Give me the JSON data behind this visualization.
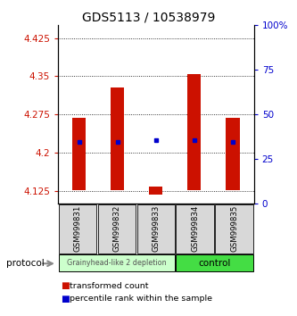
{
  "title": "GDS5113 / 10538979",
  "samples": [
    "GSM999831",
    "GSM999832",
    "GSM999833",
    "GSM999834",
    "GSM999835"
  ],
  "bar_bottoms": [
    4.127,
    4.127,
    4.118,
    4.127,
    4.127
  ],
  "bar_tops": [
    4.268,
    4.328,
    4.133,
    4.355,
    4.268
  ],
  "percentile_values": [
    4.222,
    4.222,
    4.225,
    4.225,
    4.222
  ],
  "ylim_left": [
    4.1,
    4.45
  ],
  "ylim_right": [
    0,
    100
  ],
  "yticks_left": [
    4.125,
    4.2,
    4.275,
    4.35,
    4.425
  ],
  "yticks_right": [
    0,
    25,
    50,
    75,
    100
  ],
  "ytick_labels_left": [
    "4.125",
    "4.2",
    "4.275",
    "4.35",
    "4.425"
  ],
  "ytick_labels_right": [
    "0",
    "25",
    "50",
    "75",
    "100%"
  ],
  "bar_color": "#cc1100",
  "dot_color": "#0000cc",
  "bg_color": "#ffffff",
  "plot_bg": "#ffffff",
  "group1_label": "Grainyhead-like 2 depletion",
  "group2_label": "control",
  "group1_color": "#ccffcc",
  "group2_color": "#44dd44",
  "group1_count": 3,
  "group2_count": 2,
  "protocol_label": "protocol",
  "legend_red": "transformed count",
  "legend_blue": "percentile rank within the sample",
  "title_fontsize": 10,
  "tick_fontsize": 7.5,
  "label_fontsize": 7
}
